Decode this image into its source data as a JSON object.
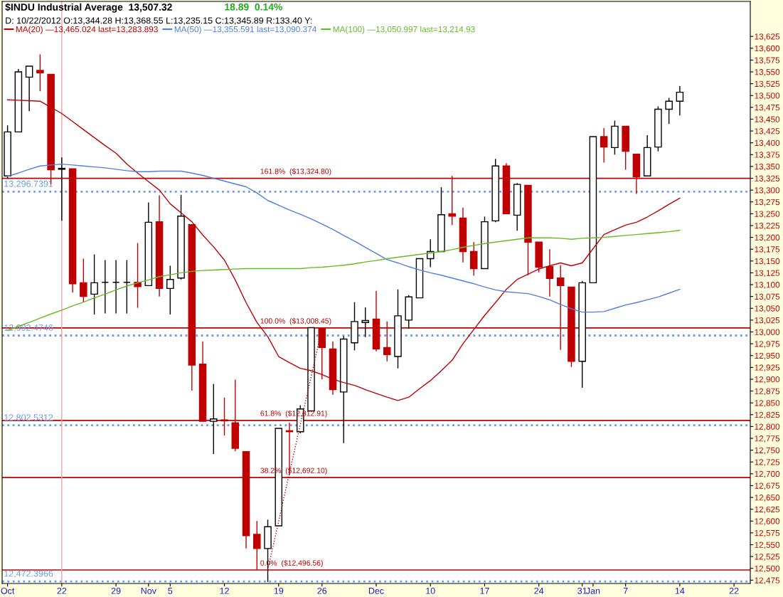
{
  "chart_data": {
    "type": "candlestick",
    "title": "$INDU Industrial Average  13,507.32",
    "annotations": [
      "18.89  0.14%",
      "D: 10/22/2012 O:13,344.28 H:13,368.55 L:13,235.15 C:13,345.89 R:133.40 Y:"
    ],
    "categories": [
      "Oct",
      null,
      null,
      null,
      null,
      "22",
      null,
      null,
      null,
      null,
      "29",
      null,
      null,
      "Nov",
      null,
      "5",
      null,
      null,
      null,
      null,
      "12",
      null,
      null,
      null,
      null,
      "19",
      null,
      null,
      null,
      "26",
      null,
      null,
      null,
      null,
      "Dec",
      null,
      null,
      null,
      null,
      "10",
      null,
      null,
      null,
      null,
      "17",
      null,
      null,
      null,
      null,
      "24",
      null,
      null,
      null,
      "31",
      "Jan",
      null,
      null,
      "7",
      null,
      null,
      null,
      null,
      "14",
      null,
      null,
      null,
      null,
      "22"
    ],
    "ohlc": [
      [
        13330,
        13437,
        13325,
        13423
      ],
      [
        13423,
        13556,
        13423,
        13550
      ],
      [
        13539,
        13562,
        13467,
        13562
      ],
      [
        13553,
        13587,
        13509,
        13548
      ],
      [
        13545,
        13545,
        13312,
        13343
      ],
      [
        13344,
        13369,
        13235,
        13346
      ],
      [
        13345,
        13345,
        13083,
        13102
      ],
      [
        13104,
        13155,
        13063,
        13075
      ],
      [
        13080,
        13164,
        13037,
        13104
      ],
      [
        13105,
        13152,
        13039,
        13105
      ],
      [
        13105,
        13152,
        13039,
        13105
      ],
      [
        13105,
        13152,
        13039,
        13105
      ],
      [
        13105,
        13188,
        13051,
        13096
      ],
      [
        13098,
        13274,
        13098,
        13232
      ],
      [
        13233,
        13289,
        13075,
        13092
      ],
      [
        13092,
        13140,
        13037,
        13111
      ],
      [
        13114,
        13290,
        13111,
        13245
      ],
      [
        13227,
        13227,
        12876,
        12930
      ],
      [
        12932,
        12980,
        12811,
        12811
      ],
      [
        12811,
        12890,
        12742,
        12816
      ],
      [
        12814,
        12861,
        12781,
        12812
      ],
      [
        12808,
        12899,
        12748,
        12754
      ],
      [
        12747,
        12747,
        12542,
        12569
      ],
      [
        12572,
        12600,
        12497,
        12542
      ],
      [
        12542,
        12603,
        12471,
        12588
      ],
      [
        12590,
        12796,
        12590,
        12796
      ],
      [
        12791,
        12808,
        12697,
        12789
      ],
      [
        12789,
        12845,
        12786,
        12837
      ],
      [
        12833,
        13009,
        12833,
        13009
      ],
      [
        13007,
        13008,
        12900,
        12967
      ],
      [
        12964,
        12980,
        12867,
        12878
      ],
      [
        12873,
        12991,
        12765,
        12985
      ],
      [
        12977,
        13063,
        12961,
        13022
      ],
      [
        13020,
        13052,
        12989,
        13024
      ],
      [
        13027,
        13087,
        12959,
        12964
      ],
      [
        12967,
        13022,
        12938,
        12952
      ],
      [
        12948,
        13090,
        12923,
        13034
      ],
      [
        13025,
        13078,
        13007,
        13074
      ],
      [
        13072,
        13155,
        13072,
        13155
      ],
      [
        13155,
        13196,
        13137,
        13170
      ],
      [
        13170,
        13306,
        13170,
        13248
      ],
      [
        13250,
        13330,
        13226,
        13245
      ],
      [
        13241,
        13263,
        13147,
        13170
      ],
      [
        13170,
        13190,
        13119,
        13134
      ],
      [
        13134,
        13244,
        13134,
        13233
      ],
      [
        13235,
        13366,
        13232,
        13351
      ],
      [
        13351,
        13357,
        13250,
        13250
      ],
      [
        13247,
        13315,
        13214,
        13312
      ],
      [
        13310,
        13310,
        13120,
        13190
      ],
      [
        13190,
        13190,
        13126,
        13137
      ],
      [
        13138,
        13175,
        13075,
        13113
      ],
      [
        13114,
        13141,
        12962,
        13098
      ],
      [
        13095,
        13095,
        12926,
        12938
      ],
      [
        12938,
        13108,
        12882,
        13104
      ],
      [
        13104,
        13413,
        13104,
        13413
      ],
      [
        13413,
        13431,
        13358,
        13391
      ],
      [
        13390,
        13447,
        13375,
        13435
      ],
      [
        13435,
        13435,
        13343,
        13382
      ],
      [
        13376,
        13376,
        13292,
        13328
      ],
      [
        13330,
        13416,
        13330,
        13390
      ],
      [
        13391,
        13477,
        13382,
        13471
      ],
      [
        13471,
        13495,
        13440,
        13488
      ],
      [
        13488,
        13520,
        13458,
        13507
      ],
      null,
      null,
      null,
      null,
      null
    ],
    "series": [
      {
        "type": "line",
        "name": "MA(20) —13,465.024 last=13,283.893",
        "color": "#c00000",
        "values": [
          13491,
          13490,
          13489,
          13488,
          13475,
          13462,
          13445,
          13428,
          13411,
          13394,
          13378,
          13355,
          13336,
          13318,
          13300,
          13271,
          13252,
          13233,
          13205,
          13180,
          13152,
          13110,
          13062,
          13020,
          12990,
          12948,
          12935,
          12923,
          12918,
          12910,
          12900,
          12893,
          12887,
          12878,
          12870,
          12862,
          12855,
          12862,
          12880,
          12897,
          12918,
          12940,
          12975,
          13005,
          13035,
          13062,
          13090,
          13111,
          13122,
          13133,
          13140,
          13146,
          13140,
          13146,
          13176,
          13206,
          13216,
          13226,
          13232,
          13243,
          13256,
          13270,
          13283,
          null,
          null,
          null,
          null,
          null
        ]
      },
      {
        "type": "line",
        "name": "MA(50) —13,355.591 last=13,090.374",
        "color": "#4f7fe0",
        "values": [
          13329,
          13336,
          13344,
          13351,
          13353,
          13355,
          13353,
          13351,
          13349,
          13347,
          13344,
          13341,
          13339,
          13339,
          13340,
          13340,
          13340,
          13336,
          13331,
          13325,
          13319,
          13313,
          13307,
          13294,
          13278,
          13268,
          13258,
          13249,
          13239,
          13228,
          13217,
          13204,
          13192,
          13179,
          13166,
          13153,
          13146,
          13138,
          13131,
          13125,
          13120,
          13114,
          13108,
          13102,
          13095,
          13089,
          13085,
          13083,
          13081,
          13075,
          13068,
          13058,
          13049,
          13042,
          13042,
          13043,
          13050,
          13057,
          13062,
          13068,
          13074,
          13082,
          13090,
          null,
          null,
          null,
          null,
          null
        ]
      },
      {
        "type": "line",
        "name": "MA(100) —13,050.997 last=13,214.93",
        "color": "#66bb22",
        "values": [
          13003,
          13012,
          13020,
          13029,
          13038,
          13046,
          13055,
          13063,
          13072,
          13080,
          13089,
          13097,
          13104,
          13110,
          13117,
          13121,
          13125,
          13128,
          13130,
          13131,
          13132,
          13133,
          13134,
          13134,
          13134,
          13134,
          13134,
          13134,
          13136,
          13137,
          13139,
          13141,
          13144,
          13148,
          13151,
          13155,
          13158,
          13161,
          13164,
          13167,
          13170,
          13174,
          13179,
          13183,
          13187,
          13190,
          13193,
          13196,
          13199,
          13199,
          13199,
          13198,
          13196,
          13198,
          13199,
          13200,
          13202,
          13204,
          13206,
          13208,
          13210,
          13212,
          13215,
          null,
          null,
          null,
          null,
          null
        ]
      },
      {
        "type": "line",
        "color": "#c00000",
        "line_style": "dotted",
        "values": [
          null,
          null,
          null,
          null,
          null,
          null,
          null,
          null,
          null,
          null,
          null,
          null,
          null,
          null,
          null,
          null,
          null,
          null,
          null,
          null,
          null,
          null,
          null,
          null,
          12497,
          12599,
          12702,
          12804,
          12906,
          13008,
          null,
          null,
          null,
          null,
          null,
          null,
          null,
          null,
          null,
          null,
          null,
          null,
          null,
          null,
          null,
          null,
          null,
          null,
          null,
          null,
          null,
          null,
          null,
          null,
          null,
          null,
          null,
          null,
          null,
          null,
          null,
          null,
          null,
          null,
          null,
          null,
          null,
          null
        ]
      }
    ],
    "ref_lines": [
      {
        "axis": "y",
        "value": 13296.7391,
        "label": "13,296.7391",
        "color": "#6f9be8",
        "line_style": "dotted"
      },
      {
        "axis": "y",
        "value": 12992.4746,
        "label": "12,992.4746",
        "color": "#6f9be8",
        "line_style": "dotted"
      },
      {
        "axis": "y",
        "value": 12802.5312,
        "label": "12,802.5312",
        "color": "#6f9be8",
        "line_style": "dotted"
      },
      {
        "axis": "y",
        "value": 12472.3966,
        "label": "12,472.3966",
        "color": "#6f9be8",
        "line_style": "dotted"
      },
      {
        "axis": "y",
        "value": 13324.8,
        "label": "161.8%  ($13,324.80)",
        "color": "#c00000",
        "line_style": "solid"
      },
      {
        "axis": "y",
        "value": 13008.45,
        "label": "100.0%  ($13,008.45)",
        "color": "#c00000",
        "line_style": "solid"
      },
      {
        "axis": "y",
        "value": 12812.91,
        "label": "61.8%  ($12,812.91)",
        "color": "#c00000",
        "line_style": "solid"
      },
      {
        "axis": "y",
        "value": 12692.1,
        "label": "38.2%  ($12,692.10)",
        "color": "#c00000",
        "line_style": "solid"
      },
      {
        "axis": "y",
        "value": 12496.56,
        "label": "0.0%  ($12,496.56)",
        "color": "#c00000",
        "line_style": "solid"
      },
      {
        "axis": "x",
        "value": "22",
        "color": "#f4a0a0",
        "line_style": "solid"
      }
    ],
    "ylim": [
      12468,
      13699
    ],
    "yticks": [
      {
        "value": 12475,
        "label": "12,475"
      },
      {
        "value": 12500,
        "label": "12,500"
      },
      {
        "value": 12525,
        "label": "12,525"
      },
      {
        "value": 12550,
        "label": "12,550"
      },
      {
        "value": 12575,
        "label": "12,575"
      },
      {
        "value": 12600,
        "label": "12,600"
      },
      {
        "value": 12625,
        "label": "12,625"
      },
      {
        "value": 12650,
        "label": "12,650"
      },
      {
        "value": 12675,
        "label": "12,675"
      },
      {
        "value": 12700,
        "label": "12,700"
      },
      {
        "value": 12725,
        "label": "12,725"
      },
      {
        "value": 12750,
        "label": "12,750"
      },
      {
        "value": 12775,
        "label": "12,775"
      },
      {
        "value": 12800,
        "label": "12,800"
      },
      {
        "value": 12825,
        "label": "12,825"
      },
      {
        "value": 12850,
        "label": "12,850"
      },
      {
        "value": 12875,
        "label": "12,875"
      },
      {
        "value": 12900,
        "label": "12,900"
      },
      {
        "value": 12925,
        "label": "12,925"
      },
      {
        "value": 12950,
        "label": "12,950"
      },
      {
        "value": 12975,
        "label": "12,975"
      },
      {
        "value": 13000,
        "label": "13,000"
      },
      {
        "value": 13025,
        "label": "13,025"
      },
      {
        "value": 13050,
        "label": "13,050"
      },
      {
        "value": 13075,
        "label": "13,075"
      },
      {
        "value": 13100,
        "label": "13,100"
      },
      {
        "value": 13125,
        "label": "13,125"
      },
      {
        "value": 13150,
        "label": "13,150"
      },
      {
        "value": 13175,
        "label": "13,175"
      },
      {
        "value": 13200,
        "label": "13,200"
      },
      {
        "value": 13225,
        "label": "13,225"
      },
      {
        "value": 13250,
        "label": "13,250"
      },
      {
        "value": 13275,
        "label": "13,275"
      },
      {
        "value": 13300,
        "label": "13,300"
      },
      {
        "value": 13325,
        "label": "13,325"
      },
      {
        "value": 13350,
        "label": "13,350"
      },
      {
        "value": 13375,
        "label": "13,375"
      },
      {
        "value": 13400,
        "label": "13,400"
      },
      {
        "value": 13425,
        "label": "13,425"
      },
      {
        "value": 13450,
        "label": "13,450"
      },
      {
        "value": 13475,
        "label": "13,475"
      },
      {
        "value": 13500,
        "label": "13,500"
      },
      {
        "value": 13525,
        "label": "13,525"
      },
      {
        "value": 13550,
        "label": "13,550"
      },
      {
        "value": 13575,
        "label": "13,575"
      },
      {
        "value": 13600,
        "label": "13,600"
      },
      {
        "value": 13625,
        "label": "13,625"
      }
    ],
    "grid": false,
    "legend": "top left"
  }
}
